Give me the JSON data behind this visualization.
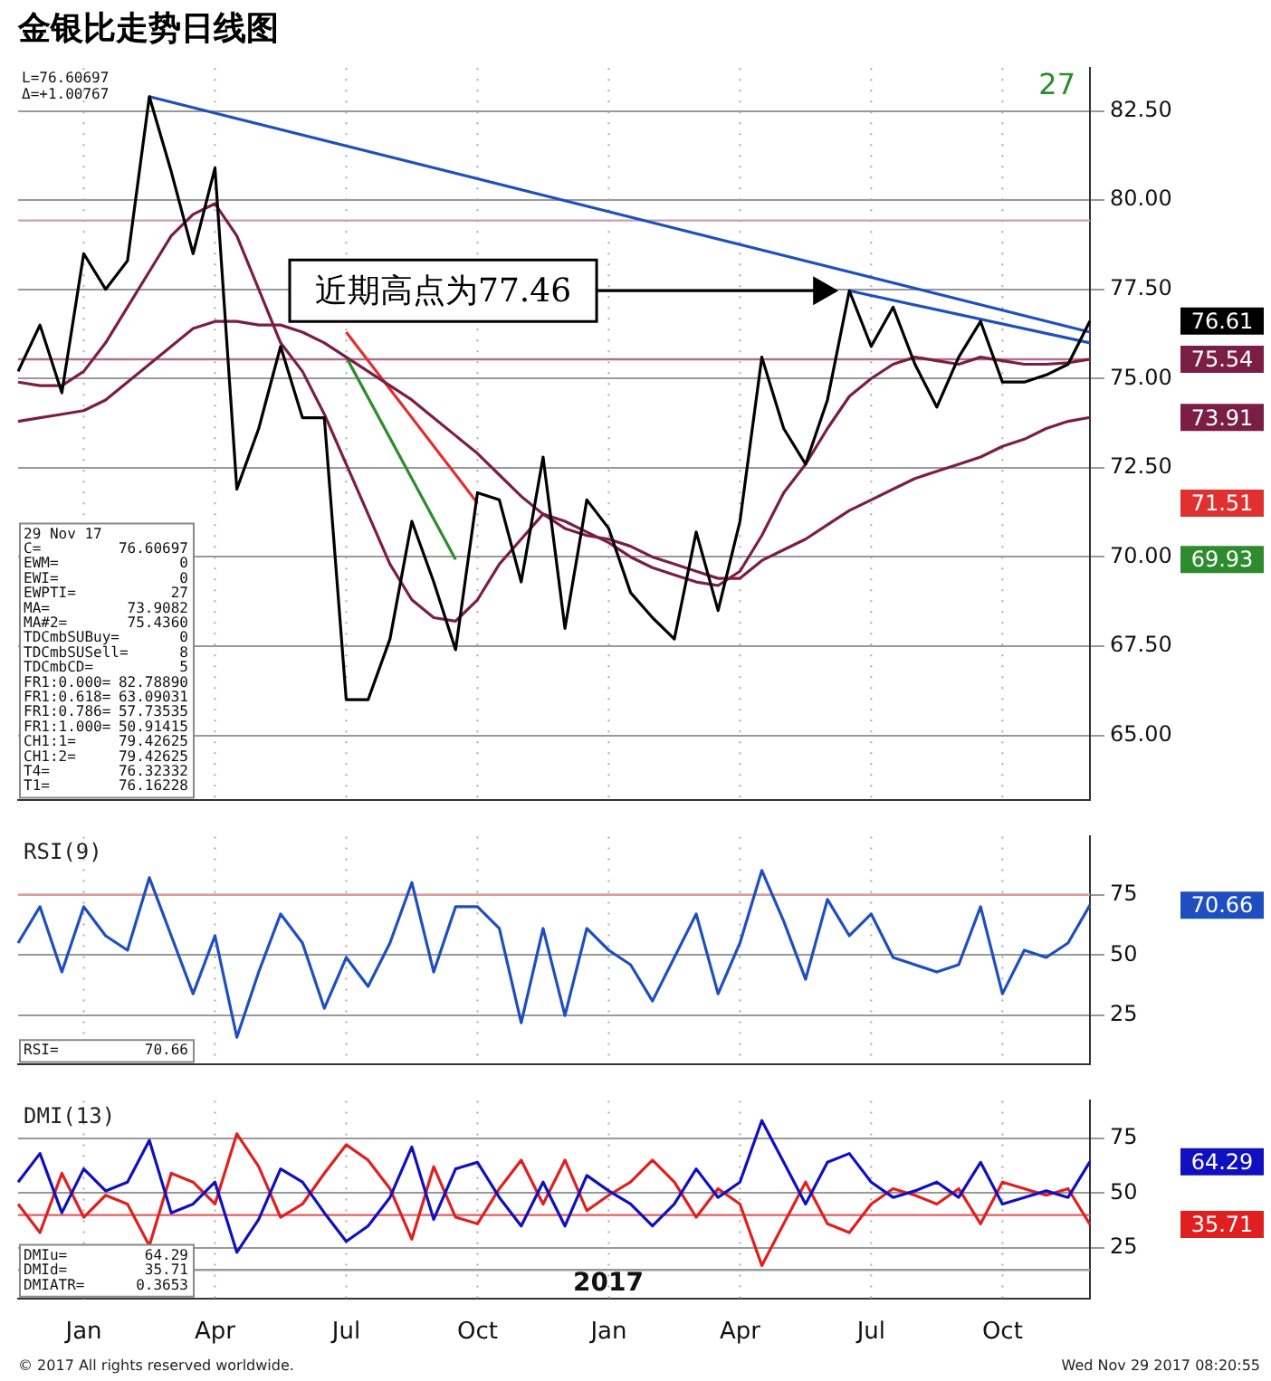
{
  "chart_data": [
    {
      "type": "line",
      "title": "金银比走势日线图",
      "categories": [
        null,
        null,
        null,
        null,
        null,
        null,
        null,
        null,
        null,
        null,
        null,
        null,
        null,
        null,
        null,
        null,
        null,
        null,
        null,
        null,
        null,
        null,
        null,
        null,
        null,
        null,
        null,
        null,
        null,
        null,
        null,
        null,
        null,
        null,
        null,
        null,
        null,
        null,
        null,
        null,
        null,
        null,
        null,
        null,
        null,
        null,
        null,
        null,
        null,
        null
      ],
      "series": [
        {
          "color": "#000000",
          "values": [
            75.2,
            76.5,
            74.6,
            78.5,
            77.5,
            78.3,
            82.9,
            80.8,
            78.5,
            80.9,
            71.9,
            73.6,
            75.9,
            73.9,
            73.9,
            66.0,
            66.0,
            67.7,
            71.0,
            69.3,
            67.4,
            71.8,
            71.6,
            69.3,
            72.8,
            68.0,
            71.6,
            70.8,
            69.0,
            68.3,
            67.7,
            70.7,
            68.5,
            71.0,
            75.6,
            73.6,
            72.6,
            74.4,
            77.46,
            75.9,
            77.0,
            75.4,
            74.2,
            75.6,
            76.6,
            74.9,
            74.9,
            75.1,
            75.4,
            76.61
          ]
        },
        {
          "color": "#7b1e45",
          "values": [
            74.9,
            74.8,
            74.8,
            75.2,
            76.0,
            77.0,
            78.0,
            79.0,
            79.6,
            79.9,
            79.0,
            77.5,
            76.0,
            75.2,
            74.0,
            72.6,
            71.2,
            69.8,
            68.8,
            68.3,
            68.2,
            68.8,
            69.8,
            70.5,
            71.2,
            71.0,
            70.7,
            70.4,
            70.0,
            69.7,
            69.5,
            69.3,
            69.2,
            69.6,
            70.6,
            71.8,
            72.6,
            73.6,
            74.5,
            75.0,
            75.4,
            75.6,
            75.5,
            75.4,
            75.6,
            75.5,
            75.4,
            75.4,
            75.44,
            75.54
          ]
        },
        {
          "color": "#7b1e45",
          "values": [
            73.8,
            73.9,
            74.0,
            74.1,
            74.4,
            74.9,
            75.4,
            75.9,
            76.4,
            76.6,
            76.6,
            76.5,
            76.5,
            76.3,
            76.0,
            75.6,
            75.2,
            74.8,
            74.4,
            73.9,
            73.4,
            72.9,
            72.3,
            71.7,
            71.2,
            70.8,
            70.6,
            70.5,
            70.3,
            70.0,
            69.8,
            69.6,
            69.4,
            69.4,
            69.9,
            70.2,
            70.5,
            70.9,
            71.3,
            71.6,
            71.9,
            72.2,
            72.4,
            72.6,
            72.8,
            73.1,
            73.3,
            73.6,
            73.8,
            73.91
          ]
        },
        {
          "type": "line",
          "color": "#1f4fbf",
          "values": [
            null,
            null,
            null,
            null,
            null,
            null,
            82.9,
            null,
            null,
            null,
            null,
            null,
            null,
            null,
            null,
            null,
            null,
            null,
            null,
            null,
            null,
            null,
            null,
            null,
            null,
            null,
            null,
            null,
            null,
            null,
            null,
            null,
            null,
            null,
            null,
            null,
            null,
            null,
            null,
            null,
            null,
            null,
            null,
            null,
            null,
            null,
            null,
            null,
            null,
            76.3
          ]
        },
        {
          "type": "line",
          "color": "#1f4fbf",
          "values": [
            null,
            null,
            null,
            null,
            null,
            null,
            null,
            null,
            null,
            null,
            null,
            null,
            null,
            null,
            null,
            null,
            null,
            null,
            null,
            null,
            null,
            null,
            null,
            null,
            null,
            null,
            null,
            null,
            null,
            null,
            null,
            null,
            null,
            null,
            null,
            null,
            null,
            null,
            77.46,
            null,
            null,
            null,
            null,
            null,
            null,
            null,
            null,
            null,
            null,
            76.0
          ]
        },
        {
          "type": "line",
          "color": "#2e8b2e",
          "values": [
            null,
            null,
            null,
            null,
            null,
            null,
            null,
            null,
            null,
            null,
            null,
            null,
            null,
            null,
            null,
            75.6,
            null,
            null,
            null,
            null,
            69.93,
            null,
            null,
            null,
            null,
            null,
            null,
            null,
            null,
            null,
            null,
            null,
            null,
            null,
            null,
            null,
            null,
            null,
            null,
            null,
            null,
            null,
            null,
            null,
            null,
            null,
            null,
            null,
            null,
            null
          ]
        },
        {
          "type": "line",
          "color": "#e03030",
          "values": [
            null,
            null,
            null,
            null,
            null,
            null,
            null,
            null,
            null,
            null,
            null,
            null,
            null,
            null,
            null,
            76.3,
            null,
            null,
            null,
            null,
            null,
            71.51,
            null,
            null,
            null,
            null,
            null,
            null,
            null,
            null,
            null,
            null,
            null,
            null,
            null,
            null,
            null,
            null,
            null,
            null,
            null,
            null,
            null,
            null,
            null,
            null,
            null,
            null,
            null,
            null
          ]
        }
      ],
      "ylim": [
        63.2,
        83.7
      ],
      "yticks": [
        {
          "value": 65,
          "label": "65.00"
        },
        {
          "value": 67.5,
          "label": "67.50"
        },
        {
          "value": 70,
          "label": "70.00"
        },
        {
          "value": 72.5,
          "label": "72.50"
        },
        {
          "value": 75,
          "label": "75.00"
        },
        {
          "value": 77.5,
          "label": "77.50"
        },
        {
          "value": 80,
          "label": "80.00"
        },
        {
          "value": 82.5,
          "label": "82.50"
        }
      ],
      "ref_lines": [
        {
          "axis": "y",
          "value": 79.43,
          "color": "#c8a0b0"
        },
        {
          "axis": "y",
          "value": 75.54,
          "color": "#b07090"
        }
      ],
      "annotations": [
        "L=76.60697",
        "Δ=+1.00767",
        "27",
        "29 Nov 17",
        "C=  76.60697",
        "EWM=  0",
        "EWI=  0",
        "EWPTI=  27",
        "MA=  73.9082",
        "MA#2=  75.4360",
        "TDCmbSUBuy=  0",
        "TDCmbSUSell=  8",
        "TDCmbCD=  5",
        "FR1:0.000=  82.78890",
        "FR1:0.618=  63.09031",
        "FR1:0.786=  57.73535",
        "FR1:1.000=  50.91415",
        "CH1:1=  79.42625",
        "CH1:2=  79.42625",
        "T4=  76.32332",
        "T1=  76.16228",
        "近期高点为77.46",
        "76.61",
        "75.54",
        "73.91",
        "71.51",
        "69.93"
      ],
      "grid": true,
      "tick_labels": "y",
      "marker": "none",
      "line_style": "solid"
    },
    {
      "type": "line",
      "title": "RSI(9)",
      "categories": [
        null,
        null,
        null,
        null,
        null,
        null,
        null,
        null,
        null,
        null,
        null,
        null,
        null,
        null,
        null,
        null,
        null,
        null,
        null,
        null,
        null,
        null,
        null,
        null,
        null,
        null,
        null,
        null,
        null,
        null,
        null,
        null,
        null,
        null,
        null,
        null,
        null,
        null,
        null,
        null,
        null,
        null,
        null,
        null,
        null,
        null,
        null,
        null,
        null,
        null
      ],
      "series": [
        {
          "color": "#1f4fbf",
          "values": [
            55,
            70,
            43,
            70,
            58,
            52,
            82,
            58,
            34,
            58,
            16,
            43,
            67,
            55,
            28,
            49,
            37,
            55,
            80,
            43,
            70,
            70,
            61,
            22,
            61,
            25,
            61,
            52,
            46,
            31,
            49,
            67,
            34,
            55,
            85,
            64,
            40,
            73,
            58,
            67,
            49,
            46,
            43,
            46,
            70,
            34,
            52,
            49,
            55,
            70.66
          ]
        }
      ],
      "ylim": [
        5,
        99
      ],
      "yticks": [
        25,
        50,
        75
      ],
      "ref_lines": [
        {
          "axis": "y",
          "value": 75,
          "color": "#e0a0a0"
        }
      ],
      "annotations": [
        "RSI=  70.66",
        "70.66"
      ],
      "grid": true,
      "tick_labels": "y",
      "marker": "none",
      "line_style": "solid"
    },
    {
      "type": "line",
      "title": "DMI(13)",
      "categories": [
        null,
        null,
        null,
        "Jan",
        null,
        null,
        null,
        null,
        null,
        "Apr",
        null,
        null,
        null,
        null,
        null,
        "Jul",
        null,
        null,
        null,
        null,
        null,
        "Oct",
        null,
        null,
        null,
        null,
        null,
        "Jan",
        null,
        null,
        null,
        null,
        null,
        "Apr",
        null,
        null,
        null,
        null,
        null,
        "Jul",
        null,
        null,
        null,
        null,
        null,
        "Oct",
        null,
        null,
        null,
        null
      ],
      "series": [
        {
          "color": "#1010c0",
          "values": [
            55,
            68,
            41,
            61,
            51,
            55,
            74,
            41,
            45,
            55,
            23,
            38,
            61,
            55,
            41,
            28,
            35,
            48,
            71,
            38,
            61,
            64,
            48,
            35,
            55,
            35,
            58,
            51,
            45,
            35,
            45,
            61,
            48,
            55,
            83,
            64,
            45,
            64,
            68,
            55,
            48,
            51,
            55,
            48,
            64,
            45,
            48,
            51,
            48,
            64.29
          ]
        },
        {
          "color": "#e02020",
          "values": [
            45,
            32,
            59,
            39,
            49,
            45,
            26,
            59,
            55,
            45,
            77,
            62,
            39,
            45,
            59,
            72,
            65,
            52,
            29,
            62,
            39,
            36,
            52,
            65,
            45,
            65,
            42,
            49,
            55,
            65,
            55,
            39,
            52,
            45,
            17,
            36,
            55,
            36,
            32,
            45,
            52,
            49,
            45,
            52,
            36,
            55,
            52,
            49,
            52,
            35.71
          ]
        }
      ],
      "ylim": [
        2,
        92
      ],
      "yticks": [
        25,
        50,
        75
      ],
      "ref_lines": [
        {
          "axis": "y",
          "value": 40,
          "color": "#e06060"
        },
        {
          "axis": "y",
          "value": 15,
          "color": "#999999"
        }
      ],
      "annotations": [
        "DMIu=  64.29",
        "DMId=  35.71",
        "DMIATR=  0.3653",
        "2017",
        "© 2017 All rights reserved worldwide.",
        "Wed Nov 29 2017 08:20:55",
        "64.29",
        "35.71"
      ],
      "grid": true,
      "marker": "none",
      "line_style": "solid"
    }
  ]
}
